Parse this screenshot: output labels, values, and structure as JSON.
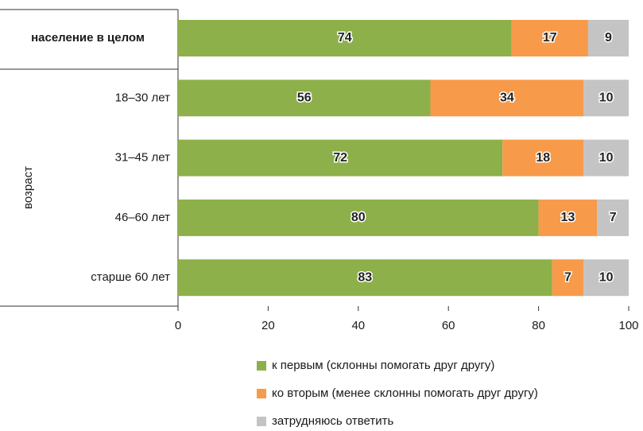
{
  "chart_data": {
    "type": "stacked_barh",
    "categories": [
      "население в целом",
      "18–30 лет",
      "31–45 лет",
      "46–60 лет",
      "старше 60 лет"
    ],
    "group_label": "возраст",
    "series": [
      {
        "name": "к первым (склонны помогать друг другу)",
        "color": "#8db04a",
        "values": [
          74,
          56,
          72,
          80,
          83
        ]
      },
      {
        "name": "ко вторым (менее склонны помогать друг другу)",
        "color": "#f79a4a",
        "values": [
          17,
          34,
          18,
          13,
          7
        ]
      },
      {
        "name": "затрудняюсь ответить",
        "color": "#c4c4c4",
        "values": [
          9,
          10,
          10,
          7,
          10
        ]
      }
    ],
    "xlim": [
      0,
      100
    ],
    "xticks": [
      0,
      20,
      40,
      60,
      80,
      100
    ]
  }
}
